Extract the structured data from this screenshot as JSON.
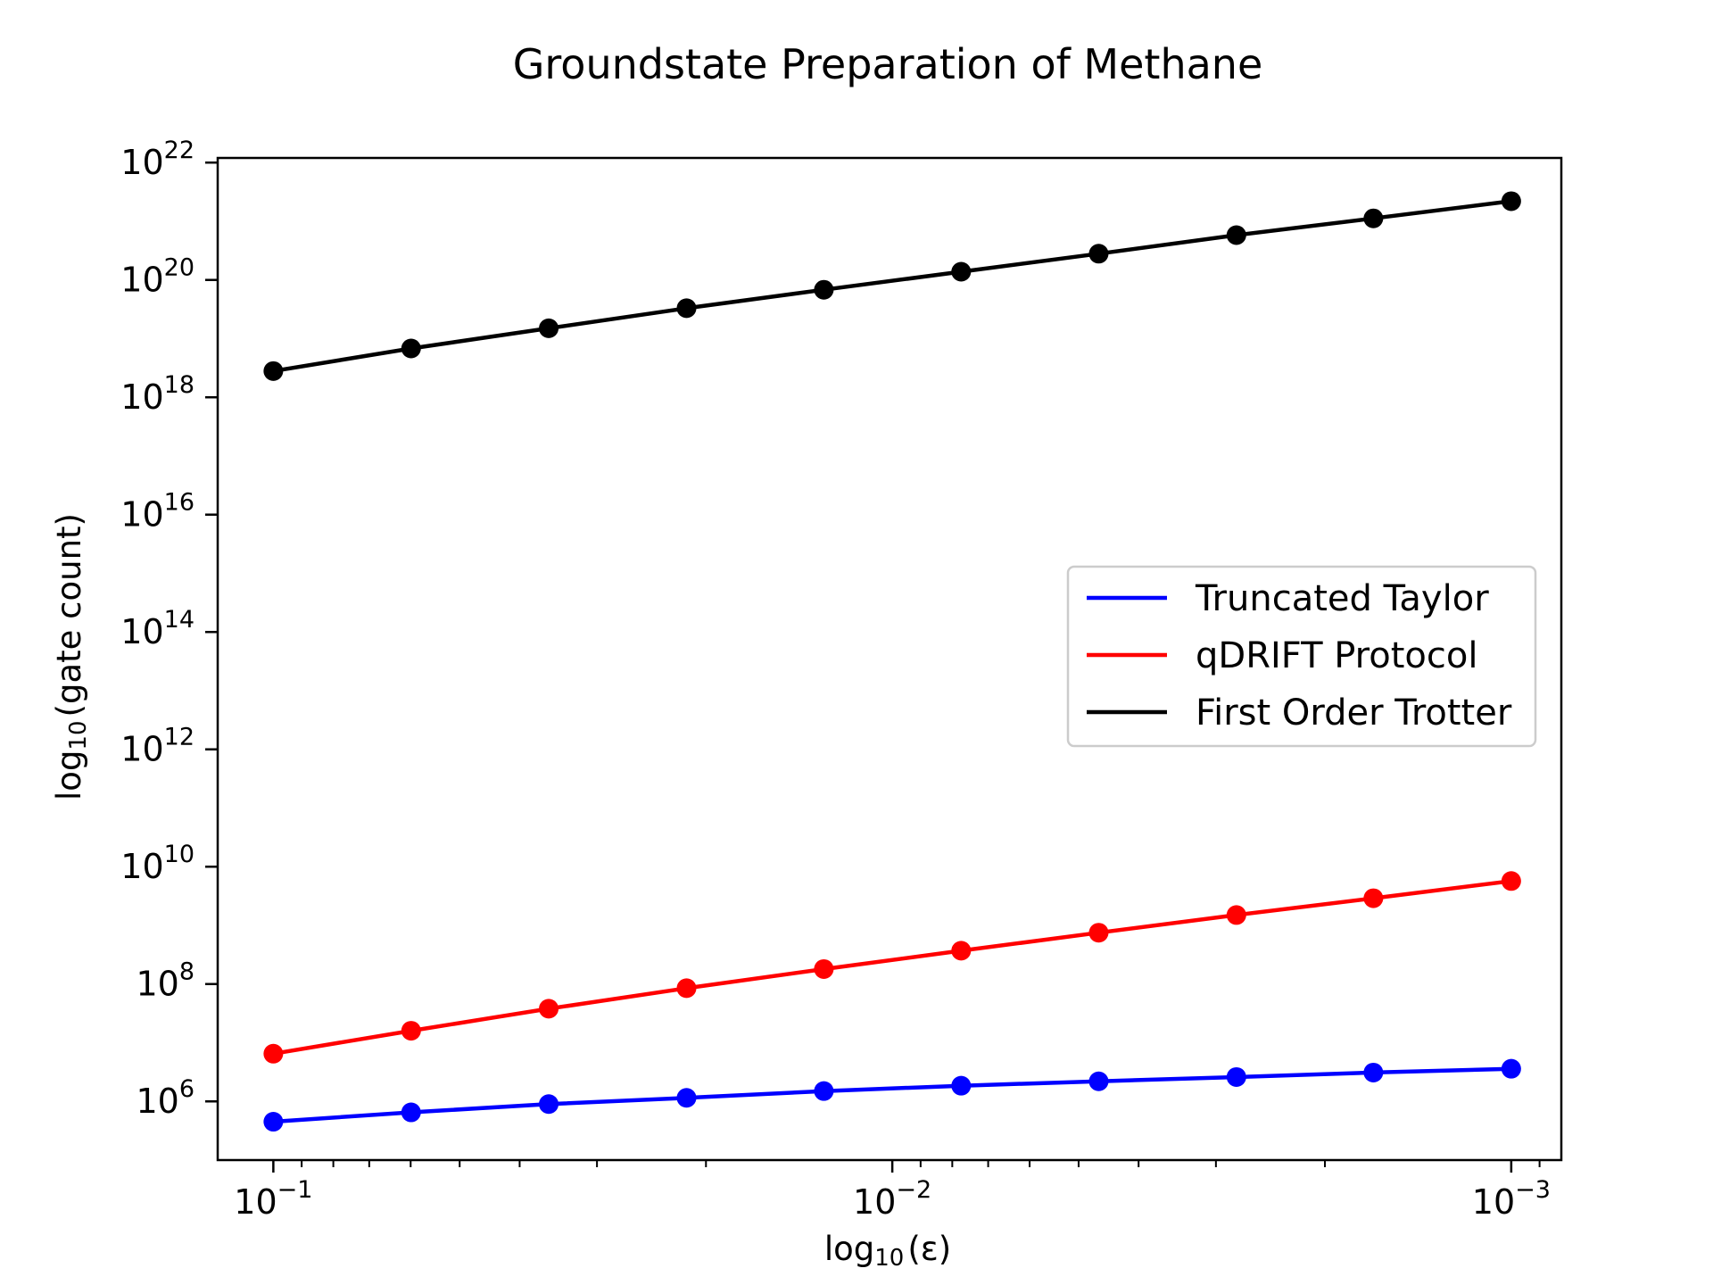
{
  "chart_data": {
    "type": "line",
    "title": "Groundstate Preparation of Methane",
    "xlabel": {
      "base": "log",
      "sub": "10",
      "rest": "(ε)"
    },
    "ylabel": {
      "base": "log",
      "sub": "10",
      "rest": "(gate count)"
    },
    "x_scale": "log",
    "y_scale": "log",
    "x_reversed": true,
    "xlim": [
      0.123,
      0.00083
    ],
    "ylim": [
      100000,
      1.2e+22
    ],
    "x_ticks": [
      {
        "value": 0.1,
        "base": "10",
        "exp": "−1"
      },
      {
        "value": 0.01,
        "base": "10",
        "exp": "−2"
      },
      {
        "value": 0.001,
        "base": "10",
        "exp": "−3"
      }
    ],
    "y_ticks": [
      {
        "value": 1000000.0,
        "base": "10",
        "exp": "6"
      },
      {
        "value": 100000000.0,
        "base": "10",
        "exp": "8"
      },
      {
        "value": 10000000000.0,
        "base": "10",
        "exp": "10"
      },
      {
        "value": 1000000000000.0,
        "base": "10",
        "exp": "12"
      },
      {
        "value": 100000000000000.0,
        "base": "10",
        "exp": "14"
      },
      {
        "value": 1e+16,
        "base": "10",
        "exp": "16"
      },
      {
        "value": 1e+18,
        "base": "10",
        "exp": "18"
      },
      {
        "value": 1e+20,
        "base": "10",
        "exp": "20"
      },
      {
        "value": 1e+22,
        "base": "10",
        "exp": "22"
      }
    ],
    "x": [
      0.1,
      0.0599,
      0.0359,
      0.0215,
      0.0129,
      0.00774,
      0.00464,
      0.00278,
      0.00167,
      0.001
    ],
    "series": [
      {
        "name": "Truncated Taylor",
        "color": "#0000ff",
        "values": [
          450000.0,
          650000.0,
          900000.0,
          1150000.0,
          1500000.0,
          1850000.0,
          2200000.0,
          2600000.0,
          3100000.0,
          3600000.0
        ]
      },
      {
        "name": "qDRIFT Protocol",
        "color": "#ff0000",
        "values": [
          6500000.0,
          16000000.0,
          38000000.0,
          85000000.0,
          180000000.0,
          370000000.0,
          750000000.0,
          1500000000.0,
          2900000000.0,
          5700000000.0
        ]
      },
      {
        "name": "First Order Trotter",
        "color": "#000000",
        "values": [
          2.8e+18,
          6.8e+18,
          1.5e+19,
          3.3e+19,
          6.8e+19,
          1.38e+20,
          2.8e+20,
          5.8e+20,
          1.12e+21,
          2.2e+21
        ]
      }
    ],
    "grid": false,
    "legend_position": "center-right"
  }
}
